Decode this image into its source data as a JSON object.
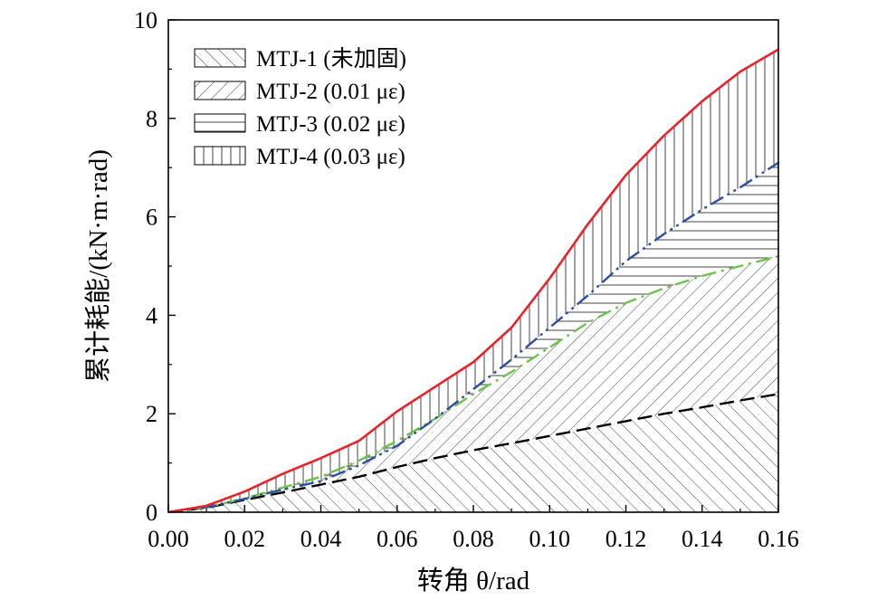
{
  "chart_data": {
    "type": "area",
    "xlabel": "转角 θ/rad",
    "ylabel": "累计耗能/(kN·m·rad)",
    "xlim": [
      0,
      0.16
    ],
    "ylim": [
      0,
      10
    ],
    "x_ticks": [
      "0.00",
      "0.02",
      "0.04",
      "0.06",
      "0.08",
      "0.10",
      "0.12",
      "0.14",
      "0.16"
    ],
    "y_ticks": [
      "0",
      "2",
      "4",
      "6",
      "8",
      "10"
    ],
    "grid": false,
    "legend_position": "top-left",
    "series": [
      {
        "name": "MTJ-1 (未加固)",
        "color": "#000000",
        "line_style": "dashed",
        "hatch": "forward-diagonal",
        "x": [
          0,
          0.01,
          0.02,
          0.03,
          0.04,
          0.05,
          0.06,
          0.07,
          0.08,
          0.09,
          0.1,
          0.11,
          0.12,
          0.13,
          0.14,
          0.15,
          0.16
        ],
        "y": [
          0,
          0.09,
          0.25,
          0.4,
          0.56,
          0.72,
          0.92,
          1.1,
          1.26,
          1.4,
          1.55,
          1.7,
          1.85,
          2.0,
          2.13,
          2.27,
          2.4
        ]
      },
      {
        "name": "MTJ-2 (0.01 με)",
        "color": "#6cc24a",
        "line_style": "dash-dot",
        "hatch": "back-diagonal",
        "x": [
          0,
          0.01,
          0.02,
          0.03,
          0.04,
          0.05,
          0.06,
          0.07,
          0.08,
          0.09,
          0.1,
          0.11,
          0.12,
          0.13,
          0.14,
          0.15,
          0.16
        ],
        "y": [
          0,
          0.1,
          0.28,
          0.5,
          0.72,
          1.05,
          1.45,
          1.9,
          2.4,
          2.85,
          3.35,
          3.85,
          4.25,
          4.55,
          4.8,
          5.0,
          5.2
        ]
      },
      {
        "name": "MTJ-3 (0.02 με)",
        "color": "#2c4ea3",
        "line_style": "dash-dot-dot",
        "hatch": "horizontal",
        "x": [
          0,
          0.01,
          0.02,
          0.03,
          0.04,
          0.05,
          0.06,
          0.07,
          0.08,
          0.09,
          0.1,
          0.11,
          0.12,
          0.13,
          0.14,
          0.15,
          0.16
        ],
        "y": [
          0,
          0.1,
          0.27,
          0.46,
          0.63,
          0.95,
          1.35,
          1.9,
          2.5,
          3.1,
          3.75,
          4.4,
          5.1,
          5.65,
          6.15,
          6.6,
          7.1
        ]
      },
      {
        "name": "MTJ-4 (0.03 με)",
        "color": "#e8232a",
        "line_style": "solid",
        "hatch": "vertical",
        "x": [
          0,
          0.01,
          0.02,
          0.03,
          0.04,
          0.05,
          0.06,
          0.07,
          0.08,
          0.09,
          0.1,
          0.11,
          0.12,
          0.13,
          0.14,
          0.15,
          0.16
        ],
        "y": [
          0,
          0.13,
          0.42,
          0.78,
          1.1,
          1.45,
          2.05,
          2.55,
          3.05,
          3.75,
          4.75,
          5.85,
          6.85,
          7.65,
          8.35,
          8.95,
          9.4
        ]
      }
    ]
  }
}
